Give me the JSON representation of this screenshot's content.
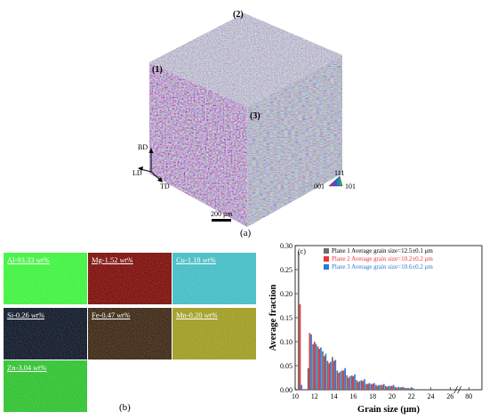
{
  "figure": {
    "panel_a_label": "(a)",
    "panel_b_label": "(b)",
    "panel_c_label": "(c)"
  },
  "cube": {
    "plane_labels": [
      "(1)",
      "(2)",
      "(3)"
    ],
    "axes": {
      "bd": "BD",
      "ld": "LD",
      "td": "TD"
    },
    "scale_bar": "200 μm",
    "ipf": {
      "top": "111",
      "left": "001",
      "right": "101"
    }
  },
  "eds_maps": [
    {
      "element": "Al-93.33 ",
      "unit": "wt%",
      "color": "#3df23d"
    },
    {
      "element": "Mg-1.52 ",
      "unit": "wt%",
      "color": "#7a0a06"
    },
    {
      "element": "Cu-1.18 ",
      "unit": "wt%",
      "color": "#40bcc4"
    },
    {
      "element": "Si-0.26 ",
      "unit": "wt%",
      "color": "#0c1526"
    },
    {
      "element": "Fe-0.47 ",
      "unit": "wt%",
      "color": "#3a2410"
    },
    {
      "element": "Mn-0.20 ",
      "unit": "wt%",
      "color": "#9e9a1e"
    },
    {
      "element": "Zn-3.04 ",
      "unit": "wt%",
      "color": "#2cc12c"
    }
  ],
  "chart_data": {
    "type": "bar",
    "xlabel": "Grain size (μm)",
    "ylabel": "Average fraction",
    "ylim": [
      0,
      0.3
    ],
    "yticks": [
      "0.00",
      "0.05",
      "0.10",
      "0.15",
      "0.20",
      "0.25",
      "0.30"
    ],
    "xticks": [
      "10",
      "12",
      "14",
      "16",
      "18",
      "20",
      "22",
      "24",
      "26",
      "80"
    ],
    "x_break": "26-80",
    "legend_position": "top-right",
    "series": [
      {
        "name": "Plane 1 Average grain size=12.5±0.1 μm",
        "color": "#6d6d6d",
        "x": [
          10.5,
          11.5,
          12,
          12.5,
          13,
          13.5,
          14,
          14.5,
          15,
          15.5,
          16,
          16.5,
          17,
          17.5,
          18,
          18.5,
          19,
          19.5,
          20,
          20.5,
          21,
          21.5,
          22
        ],
        "values": [
          0.287,
          0.045,
          0.095,
          0.09,
          0.08,
          0.06,
          0.068,
          0.04,
          0.04,
          0.03,
          0.03,
          0.02,
          0.02,
          0.012,
          0.012,
          0.01,
          0.01,
          0.008,
          0.008,
          0.006,
          0.005,
          0.004,
          0.003
        ]
      },
      {
        "name": "Plane 2 Average grain size=10.2±0.2 μm",
        "color": "#e8383d",
        "x": [
          10.5,
          11.5,
          12,
          12.5,
          13,
          13.5,
          14,
          14.5,
          15,
          15.5,
          16,
          16.5,
          17,
          17.5,
          18,
          18.5,
          19,
          19.5,
          20,
          20.5,
          21,
          21.5,
          22
        ],
        "values": [
          0.178,
          0.118,
          0.1,
          0.085,
          0.07,
          0.055,
          0.06,
          0.035,
          0.04,
          0.025,
          0.028,
          0.016,
          0.018,
          0.012,
          0.012,
          0.008,
          0.01,
          0.006,
          0.008,
          0.004,
          0.005,
          0.003,
          0.003
        ]
      },
      {
        "name": "Plane 3 Average grain size=10.6±0.2 μm",
        "color": "#2a7bd4",
        "x": [
          10.5,
          11.5,
          12,
          12.5,
          13,
          13.5,
          14,
          14.5,
          15,
          15.5,
          16,
          16.5,
          17,
          17.5,
          18,
          18.5,
          19,
          19.5,
          20,
          20.5,
          21,
          21.5,
          22
        ],
        "values": [
          0.01,
          0.115,
          0.095,
          0.088,
          0.075,
          0.058,
          0.062,
          0.038,
          0.045,
          0.028,
          0.032,
          0.018,
          0.022,
          0.014,
          0.014,
          0.01,
          0.012,
          0.008,
          0.01,
          0.006,
          0.006,
          0.004,
          0.004
        ]
      }
    ]
  }
}
